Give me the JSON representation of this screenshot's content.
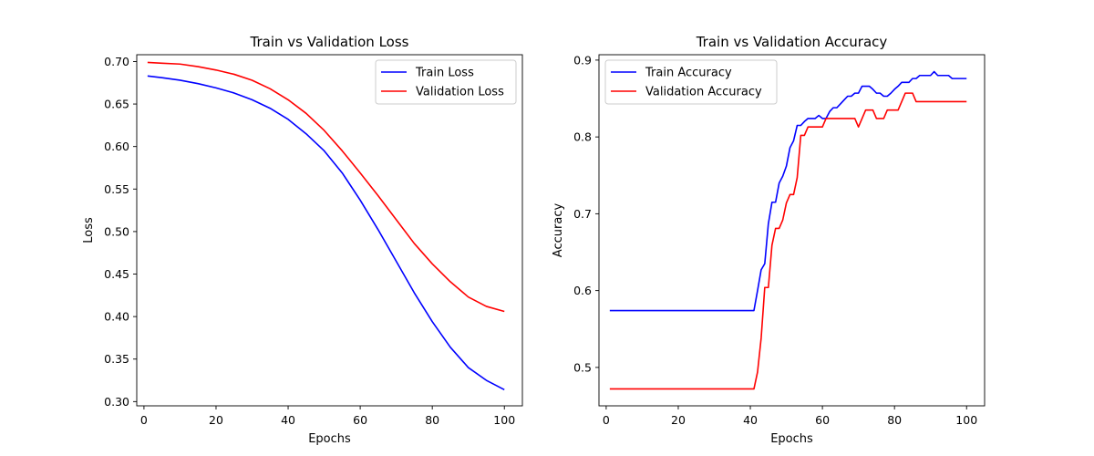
{
  "chart_data": [
    {
      "type": "line",
      "title": "Train vs Validation Loss",
      "xlabel": "Epochs",
      "ylabel": "Loss",
      "xlim": [
        -2,
        105
      ],
      "ylim": [
        0.295,
        0.708
      ],
      "xticks": [
        0,
        20,
        40,
        60,
        80,
        100
      ],
      "yticks": [
        0.3,
        0.35,
        0.4,
        0.45,
        0.5,
        0.55,
        0.6,
        0.65,
        0.7
      ],
      "ytick_labels": [
        "0.30",
        "0.35",
        "0.40",
        "0.45",
        "0.50",
        "0.55",
        "0.60",
        "0.65",
        "0.70"
      ],
      "legend_position": "top-right",
      "series": [
        {
          "name": "Train Loss",
          "color": "#0000ff",
          "x": [
            1,
            5,
            10,
            15,
            20,
            25,
            30,
            35,
            40,
            45,
            50,
            55,
            60,
            65,
            70,
            75,
            80,
            85,
            90,
            95,
            100
          ],
          "y": [
            0.683,
            0.681,
            0.678,
            0.674,
            0.669,
            0.663,
            0.655,
            0.645,
            0.632,
            0.615,
            0.595,
            0.569,
            0.537,
            0.502,
            0.465,
            0.428,
            0.394,
            0.364,
            0.34,
            0.325,
            0.314
          ]
        },
        {
          "name": "Validation Loss",
          "color": "#ff0000",
          "x": [
            1,
            5,
            10,
            15,
            20,
            25,
            30,
            35,
            40,
            45,
            50,
            55,
            60,
            65,
            70,
            75,
            80,
            85,
            90,
            95,
            100
          ],
          "y": [
            0.699,
            0.698,
            0.697,
            0.694,
            0.69,
            0.685,
            0.678,
            0.668,
            0.655,
            0.639,
            0.619,
            0.595,
            0.569,
            0.542,
            0.514,
            0.486,
            0.462,
            0.441,
            0.423,
            0.412,
            0.406
          ]
        }
      ]
    },
    {
      "type": "line",
      "title": "Train vs Validation Accuracy",
      "xlabel": "Epochs",
      "ylabel": "Accuracy",
      "xlim": [
        -2,
        105
      ],
      "ylim": [
        0.45,
        0.907
      ],
      "xticks": [
        0,
        20,
        40,
        60,
        80,
        100
      ],
      "yticks": [
        0.5,
        0.6,
        0.7,
        0.8,
        0.9
      ],
      "ytick_labels": [
        "0.5",
        "0.6",
        "0.7",
        "0.8",
        "0.9"
      ],
      "legend_position": "top-left",
      "series": [
        {
          "name": "Train Accuracy",
          "color": "#0000ff",
          "x": [
            1,
            41,
            42,
            43,
            44,
            45,
            46,
            47,
            48,
            49,
            50,
            51,
            52,
            53,
            54,
            55,
            56,
            57,
            58,
            59,
            60,
            61,
            62,
            63,
            64,
            65,
            66,
            67,
            68,
            69,
            70,
            71,
            72,
            73,
            74,
            75,
            76,
            77,
            78,
            79,
            80,
            81,
            82,
            83,
            84,
            85,
            86,
            87,
            88,
            89,
            90,
            91,
            92,
            93,
            94,
            95,
            96,
            97,
            98,
            99,
            100
          ],
          "y": [
            0.574,
            0.574,
            0.6,
            0.627,
            0.635,
            0.687,
            0.715,
            0.715,
            0.74,
            0.749,
            0.762,
            0.786,
            0.795,
            0.815,
            0.815,
            0.82,
            0.824,
            0.824,
            0.824,
            0.828,
            0.824,
            0.824,
            0.833,
            0.838,
            0.838,
            0.843,
            0.848,
            0.853,
            0.853,
            0.857,
            0.857,
            0.866,
            0.866,
            0.866,
            0.862,
            0.857,
            0.857,
            0.853,
            0.853,
            0.857,
            0.862,
            0.866,
            0.871,
            0.871,
            0.871,
            0.876,
            0.876,
            0.88,
            0.88,
            0.88,
            0.88,
            0.885,
            0.88,
            0.88,
            0.88,
            0.88,
            0.876,
            0.876,
            0.876,
            0.876,
            0.876
          ]
        },
        {
          "name": "Validation Accuracy",
          "color": "#ff0000",
          "x": [
            1,
            41,
            42,
            43,
            44,
            45,
            46,
            47,
            48,
            49,
            50,
            51,
            52,
            53,
            54,
            55,
            56,
            57,
            58,
            59,
            60,
            61,
            62,
            63,
            64,
            65,
            66,
            67,
            68,
            69,
            70,
            71,
            72,
            73,
            74,
            75,
            76,
            77,
            78,
            79,
            80,
            81,
            82,
            83,
            84,
            85,
            86,
            87,
            88,
            89,
            90,
            91,
            92,
            93,
            94,
            95,
            96,
            97,
            98,
            99,
            100
          ],
          "y": [
            0.472,
            0.472,
            0.494,
            0.538,
            0.604,
            0.604,
            0.659,
            0.681,
            0.681,
            0.692,
            0.714,
            0.725,
            0.725,
            0.747,
            0.802,
            0.802,
            0.813,
            0.813,
            0.813,
            0.813,
            0.813,
            0.824,
            0.824,
            0.824,
            0.824,
            0.824,
            0.824,
            0.824,
            0.824,
            0.824,
            0.813,
            0.824,
            0.835,
            0.835,
            0.835,
            0.824,
            0.824,
            0.824,
            0.835,
            0.835,
            0.835,
            0.835,
            0.846,
            0.857,
            0.857,
            0.857,
            0.846,
            0.846,
            0.846,
            0.846,
            0.846,
            0.846,
            0.846,
            0.846,
            0.846,
            0.846,
            0.846,
            0.846,
            0.846,
            0.846,
            0.846
          ]
        }
      ]
    }
  ]
}
